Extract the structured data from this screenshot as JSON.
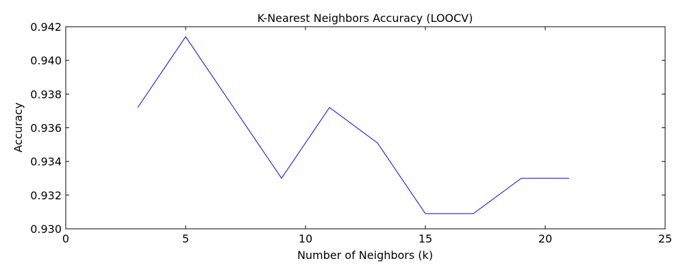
{
  "chart_data": {
    "type": "line",
    "title": "K-Nearest Neighbors Accuracy (LOOCV)",
    "xlabel": "Number of Neighbors (k)",
    "ylabel": "Accuracy",
    "xlim": [
      0,
      25
    ],
    "ylim": [
      0.93,
      0.942
    ],
    "xticks": [
      "0",
      "5",
      "10",
      "15",
      "20",
      "25"
    ],
    "yticks": [
      "0.930",
      "0.932",
      "0.934",
      "0.936",
      "0.938",
      "0.940",
      "0.942"
    ],
    "grid": false,
    "line_color": "#0000ff",
    "series": [
      {
        "x": [
          3,
          5,
          7,
          9,
          11,
          13,
          15,
          17,
          19,
          21
        ],
        "values": [
          0.9372,
          0.9414,
          0.9372,
          0.933,
          0.9372,
          0.9351,
          0.9309,
          0.9309,
          0.933,
          0.933
        ]
      }
    ]
  }
}
